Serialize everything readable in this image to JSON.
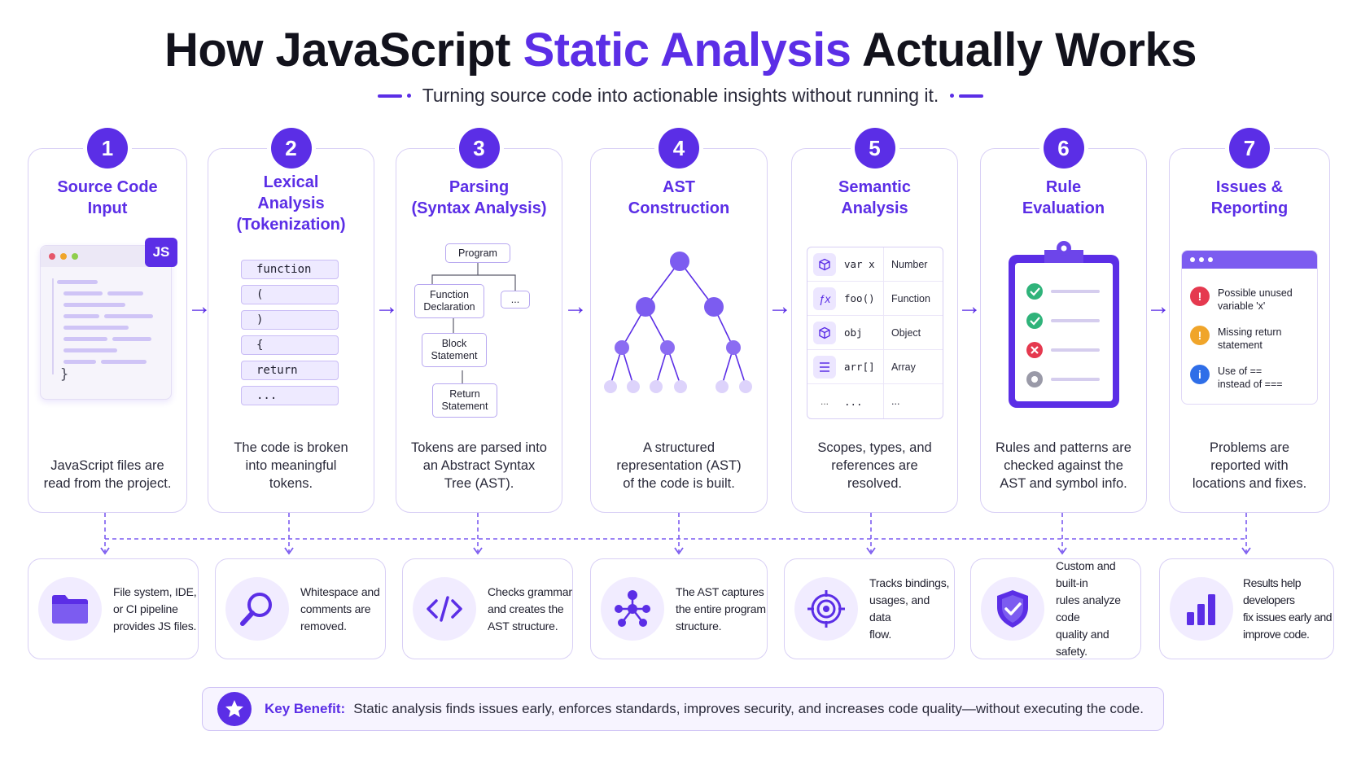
{
  "header": {
    "title_part1": "How JavaScript ",
    "title_highlight": "Static Analysis",
    "title_part2": " Actually Works",
    "subtitle": "Turning source code into actionable insights without running it."
  },
  "steps": [
    {
      "number": "1",
      "title": [
        "Source Code",
        "Input"
      ],
      "description": [
        "JavaScript files are",
        "read from the project."
      ],
      "badge_label": "JS",
      "code_brace": "}"
    },
    {
      "number": "2",
      "title": [
        "Lexical",
        "Analysis",
        "(Tokenization)"
      ],
      "description": [
        "The code is broken",
        "into meaningful",
        "tokens."
      ],
      "tokens": [
        "function",
        "(",
        ")",
        "{",
        "return",
        "..."
      ]
    },
    {
      "number": "3",
      "title": [
        "Parsing",
        "(Syntax Analysis)"
      ],
      "description": [
        "Tokens are parsed into",
        "an Abstract Syntax",
        "Tree (AST)."
      ],
      "nodes": {
        "program": "Program",
        "function_declaration": [
          "Function",
          "Declaration"
        ],
        "ellipsis": "...",
        "block_statement": [
          "Block",
          "Statement"
        ],
        "return_statement": [
          "Return",
          "Statement"
        ]
      }
    },
    {
      "number": "4",
      "title": [
        "AST",
        "Construction"
      ],
      "description": [
        "A structured",
        "representation (AST)",
        "of the code is built."
      ]
    },
    {
      "number": "5",
      "title": [
        "Semantic",
        "Analysis"
      ],
      "description": [
        "Scopes, types, and",
        "references are",
        "resolved."
      ],
      "symbols": [
        {
          "icon": "cube-icon",
          "name": "var x",
          "type": "Number"
        },
        {
          "icon": "function-icon",
          "name": "foo()",
          "type": "Function"
        },
        {
          "icon": "cube-icon",
          "name": "obj",
          "type": "Object"
        },
        {
          "icon": "list-icon",
          "name": "arr[]",
          "type": "Array"
        },
        {
          "icon": "ellipsis",
          "name": "...",
          "type": "..."
        }
      ]
    },
    {
      "number": "6",
      "title": [
        "Rule",
        "Evaluation"
      ],
      "description": [
        "Rules and patterns are",
        "checked against the",
        "AST and symbol info."
      ]
    },
    {
      "number": "7",
      "title": [
        "Issues &",
        "Reporting"
      ],
      "description": [
        "Problems are",
        "reported with",
        "locations and fixes."
      ],
      "issues": [
        {
          "icon": "!",
          "color": "#e5394f",
          "text": [
            "Possible unused",
            "variable 'x'"
          ]
        },
        {
          "icon": "!",
          "color": "#f0a52a",
          "text": [
            "Missing return",
            "statement"
          ]
        },
        {
          "icon": "i",
          "color": "#2f6ee8",
          "text": [
            "Use of ==",
            "instead of ==="
          ]
        }
      ]
    }
  ],
  "details": [
    {
      "icon": "folder-icon",
      "text": [
        "File system, IDE,",
        "or CI pipeline",
        "provides JS files."
      ]
    },
    {
      "icon": "magnifier-icon",
      "text": [
        "Whitespace and",
        "comments are",
        "removed."
      ]
    },
    {
      "icon": "code-icon",
      "text": [
        "Checks grammar",
        "and creates the",
        "AST structure."
      ]
    },
    {
      "icon": "tree-icon",
      "text": [
        "The AST captures",
        "the entire program",
        "structure."
      ]
    },
    {
      "icon": "target-icon",
      "text": [
        "Tracks bindings,",
        "usages, and data",
        "flow."
      ]
    },
    {
      "icon": "shield-icon",
      "text": [
        "Custom and built-in",
        "rules analyze code",
        "quality and safety."
      ]
    },
    {
      "icon": "bar-chart-icon",
      "text": [
        "Results help developers",
        "fix issues early and",
        "improve code."
      ]
    }
  ],
  "benefit": {
    "label": "Key Benefit:",
    "text": "Static analysis finds issues early, enforces standards, improves security, and increases code quality—without executing the code."
  },
  "colors": {
    "accent": "#5b2ee6",
    "accent_light": "#f1ecff",
    "border": "#d8cff5"
  }
}
